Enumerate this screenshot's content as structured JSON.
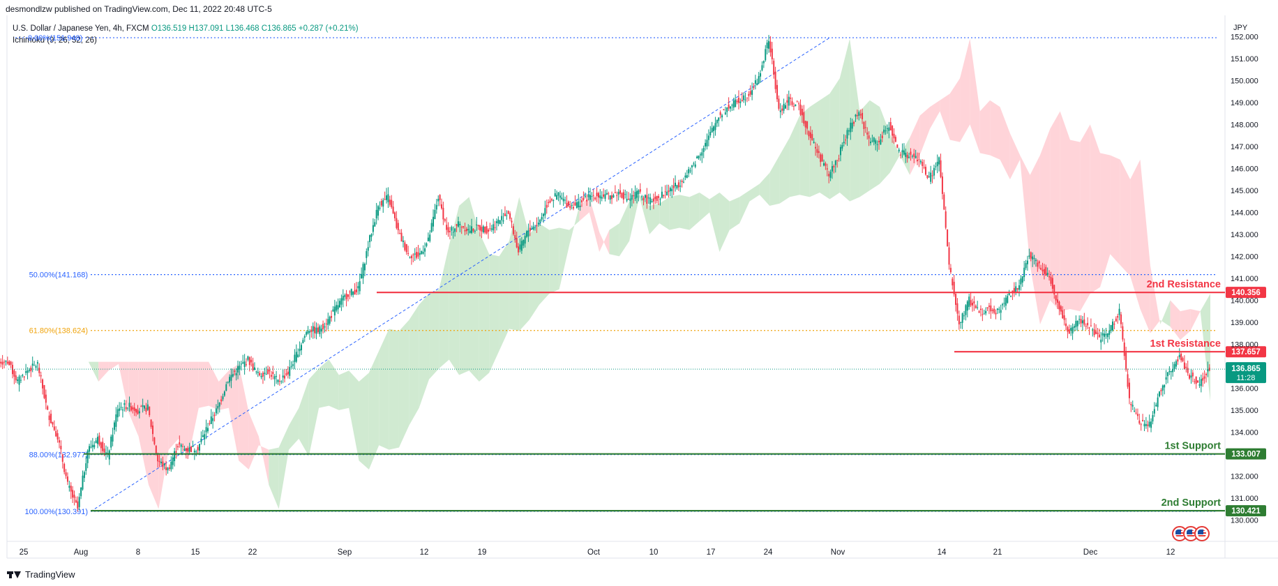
{
  "header": {
    "published_line": "desmondlzw published on TradingView.com, Dec 11, 2022 20:48 UTC-5",
    "symbol": "U.S. Dollar / Japanese Yen, 4h, FXCM",
    "open": "O136.519",
    "high": "H137.091",
    "low": "L136.468",
    "close": "C136.865",
    "change": "+0.287 (+0.21%)",
    "indicator": "Ichimoku (9, 26, 52, 26)",
    "currency": "JPY"
  },
  "footer": {
    "brand": "TradingView"
  },
  "colors": {
    "bull": "#089981",
    "bear": "#f23645",
    "resistance": "#f23645",
    "support": "#2e7d32",
    "fib_blue": "#2962ff",
    "fib_orange": "#f0a30a",
    "cloud_green": "#c8e6c9",
    "cloud_red": "#ffcdd2",
    "last_price_bg": "#089981"
  },
  "chart_data": {
    "type": "candlestick",
    "ylim": [
      129.6,
      152.35
    ],
    "y_ticks": [
      "130.000",
      "131.000",
      "132.000",
      "133.000",
      "134.000",
      "135.000",
      "136.000",
      "137.000",
      "138.000",
      "139.000",
      "140.000",
      "141.000",
      "142.000",
      "143.000",
      "144.000",
      "145.000",
      "146.000",
      "147.000",
      "148.000",
      "149.000",
      "150.000",
      "151.000",
      "152.000"
    ],
    "x_ticks": [
      "25",
      "Aug",
      "8",
      "15",
      "22",
      "Sep",
      "12",
      "19",
      "Oct",
      "10",
      "17",
      "24",
      "Nov",
      "14",
      "21",
      "Dec",
      "12"
    ],
    "price_path": [
      [
        "Jul 25",
        137.2
      ],
      [
        "Jul 26",
        136.3
      ],
      [
        "Jul 27",
        136.8
      ],
      [
        "Jul 28",
        137.1
      ],
      [
        "Jul 29",
        134.9
      ],
      [
        "Jul 31",
        133.8
      ],
      [
        "Aug 1",
        131.6
      ],
      [
        "Aug 2",
        130.5
      ],
      [
        "Aug 3",
        133.2
      ],
      [
        "Aug 4",
        133.7
      ],
      [
        "Aug 5",
        132.9
      ],
      [
        "Aug 6",
        135.1
      ],
      [
        "Aug 8",
        135.2
      ],
      [
        "Aug 9",
        135.0
      ],
      [
        "Aug 10",
        135.1
      ],
      [
        "Aug 11",
        132.7
      ],
      [
        "Aug 12",
        132.3
      ],
      [
        "Aug 13",
        133.4
      ],
      [
        "Aug 15",
        133.2
      ],
      [
        "Aug 16",
        133.3
      ],
      [
        "Aug 17",
        134.3
      ],
      [
        "Aug 18",
        135.1
      ],
      [
        "Aug 19",
        136.4
      ],
      [
        "Aug 21",
        136.9
      ],
      [
        "Aug 22",
        137.3
      ],
      [
        "Aug 23",
        136.6
      ],
      [
        "Aug 24",
        136.8
      ],
      [
        "Aug 25",
        136.3
      ],
      [
        "Aug 26",
        136.7
      ],
      [
        "Aug 28",
        137.7
      ],
      [
        "Aug 29",
        138.7
      ],
      [
        "Aug 30",
        138.6
      ],
      [
        "Aug 31",
        139.1
      ],
      [
        "Sep 1",
        139.8
      ],
      [
        "Sep 2",
        140.3
      ],
      [
        "Sep 4",
        140.5
      ],
      [
        "Sep 5",
        142.5
      ],
      [
        "Sep 6",
        144.3
      ],
      [
        "Sep 7",
        144.7
      ],
      [
        "Sep 8",
        143.1
      ],
      [
        "Sep 9",
        142.1
      ],
      [
        "Sep 11",
        142.0
      ],
      [
        "Sep 12",
        142.7
      ],
      [
        "Sep 13",
        144.7
      ],
      [
        "Sep 14",
        143.0
      ],
      [
        "Sep 15",
        143.5
      ],
      [
        "Sep 16",
        143.2
      ],
      [
        "Sep 18",
        143.3
      ],
      [
        "Sep 19",
        143.2
      ],
      [
        "Sep 20",
        143.6
      ],
      [
        "Sep 21",
        144.0
      ],
      [
        "Sep 22",
        142.2
      ],
      [
        "Sep 23",
        143.2
      ],
      [
        "Sep 25",
        143.5
      ],
      [
        "Sep 26",
        144.5
      ],
      [
        "Sep 27",
        144.8
      ],
      [
        "Sep 28",
        144.3
      ],
      [
        "Sep 29",
        144.4
      ],
      [
        "Sep 30",
        144.7
      ],
      [
        "Oct 2",
        144.8
      ],
      [
        "Oct 3",
        144.7
      ],
      [
        "Oct 4",
        144.9
      ],
      [
        "Oct 5",
        144.6
      ],
      [
        "Oct 6",
        144.9
      ],
      [
        "Oct 7",
        144.5
      ],
      [
        "Oct 9",
        144.7
      ],
      [
        "Oct 10",
        145.0
      ],
      [
        "Oct 11",
        145.3
      ],
      [
        "Oct 12",
        145.8
      ],
      [
        "Oct 13",
        146.6
      ],
      [
        "Oct 14",
        147.4
      ],
      [
        "Oct 16",
        148.4
      ],
      [
        "Oct 17",
        148.8
      ],
      [
        "Oct 18",
        149.1
      ],
      [
        "Oct 19",
        149.4
      ],
      [
        "Oct 20",
        150.1
      ],
      [
        "Oct 21",
        151.9
      ],
      [
        "Oct 22",
        148.6
      ],
      [
        "Oct 23",
        149.1
      ],
      [
        "Oct 24",
        148.8
      ],
      [
        "Oct 25",
        147.6
      ],
      [
        "Oct 26",
        146.6
      ],
      [
        "Oct 27",
        145.7
      ],
      [
        "Oct 28",
        146.6
      ],
      [
        "Oct 30",
        147.8
      ],
      [
        "Oct 31",
        148.6
      ],
      [
        "Nov 1",
        147.3
      ],
      [
        "Nov 2",
        147.2
      ],
      [
        "Nov 3",
        148.0
      ],
      [
        "Nov 4",
        146.7
      ],
      [
        "Nov 6",
        146.6
      ],
      [
        "Nov 7",
        146.4
      ],
      [
        "Nov 8",
        145.5
      ],
      [
        "Nov 9",
        146.4
      ],
      [
        "Nov 10",
        141.6
      ],
      [
        "Nov 11",
        138.9
      ],
      [
        "Nov 12",
        140.0
      ],
      [
        "Nov 14",
        139.5
      ],
      [
        "Nov 15",
        139.6
      ],
      [
        "Nov 16",
        139.5
      ],
      [
        "Nov 17",
        140.3
      ],
      [
        "Nov 18",
        140.6
      ],
      [
        "Nov 20",
        142.1
      ],
      [
        "Nov 21",
        141.6
      ],
      [
        "Nov 22",
        141.1
      ],
      [
        "Nov 23",
        139.6
      ],
      [
        "Nov 24",
        138.5
      ],
      [
        "Nov 25",
        139.1
      ],
      [
        "Nov 27",
        138.8
      ],
      [
        "Nov 28",
        138.2
      ],
      [
        "Nov 29",
        138.6
      ],
      [
        "Nov 30",
        139.5
      ],
      [
        "Dec 1",
        135.4
      ],
      [
        "Dec 2",
        134.5
      ],
      [
        "Dec 3",
        134.3
      ],
      [
        "Dec 5",
        135.8
      ],
      [
        "Dec 6",
        136.8
      ],
      [
        "Dec 7",
        137.4
      ],
      [
        "Dec 8",
        136.6
      ],
      [
        "Dec 9",
        136.2
      ],
      [
        "Dec 11",
        136.865
      ]
    ],
    "fibonacci": {
      "levels": [
        {
          "label": "50.00%(141.168)",
          "value": 141.168,
          "color": "#2962ff"
        },
        {
          "label": "61.80%(138.624)",
          "value": 138.624,
          "color": "#f0a30a"
        },
        {
          "label": "88.00%(132.977)",
          "value": 132.977,
          "color": "#2962ff"
        },
        {
          "label": "100.00%(130.391)",
          "value": 130.391,
          "color": "#2962ff"
        }
      ],
      "top_label": "0.00%(151.948)",
      "top_value": 151.948
    },
    "levels": [
      {
        "name": "2nd Resistance",
        "value": 140.356,
        "label": "140.356",
        "kind": "resistance"
      },
      {
        "name": "1st Resistance",
        "value": 137.657,
        "label": "137.657",
        "kind": "resistance"
      },
      {
        "name": "1st Support",
        "value": 133.007,
        "label": "133.007",
        "kind": "support"
      },
      {
        "name": "2nd Support",
        "value": 130.421,
        "label": "130.421",
        "kind": "support"
      }
    ],
    "last_price": {
      "value": 136.865,
      "label": "136.865",
      "countdown": "11:28"
    }
  }
}
